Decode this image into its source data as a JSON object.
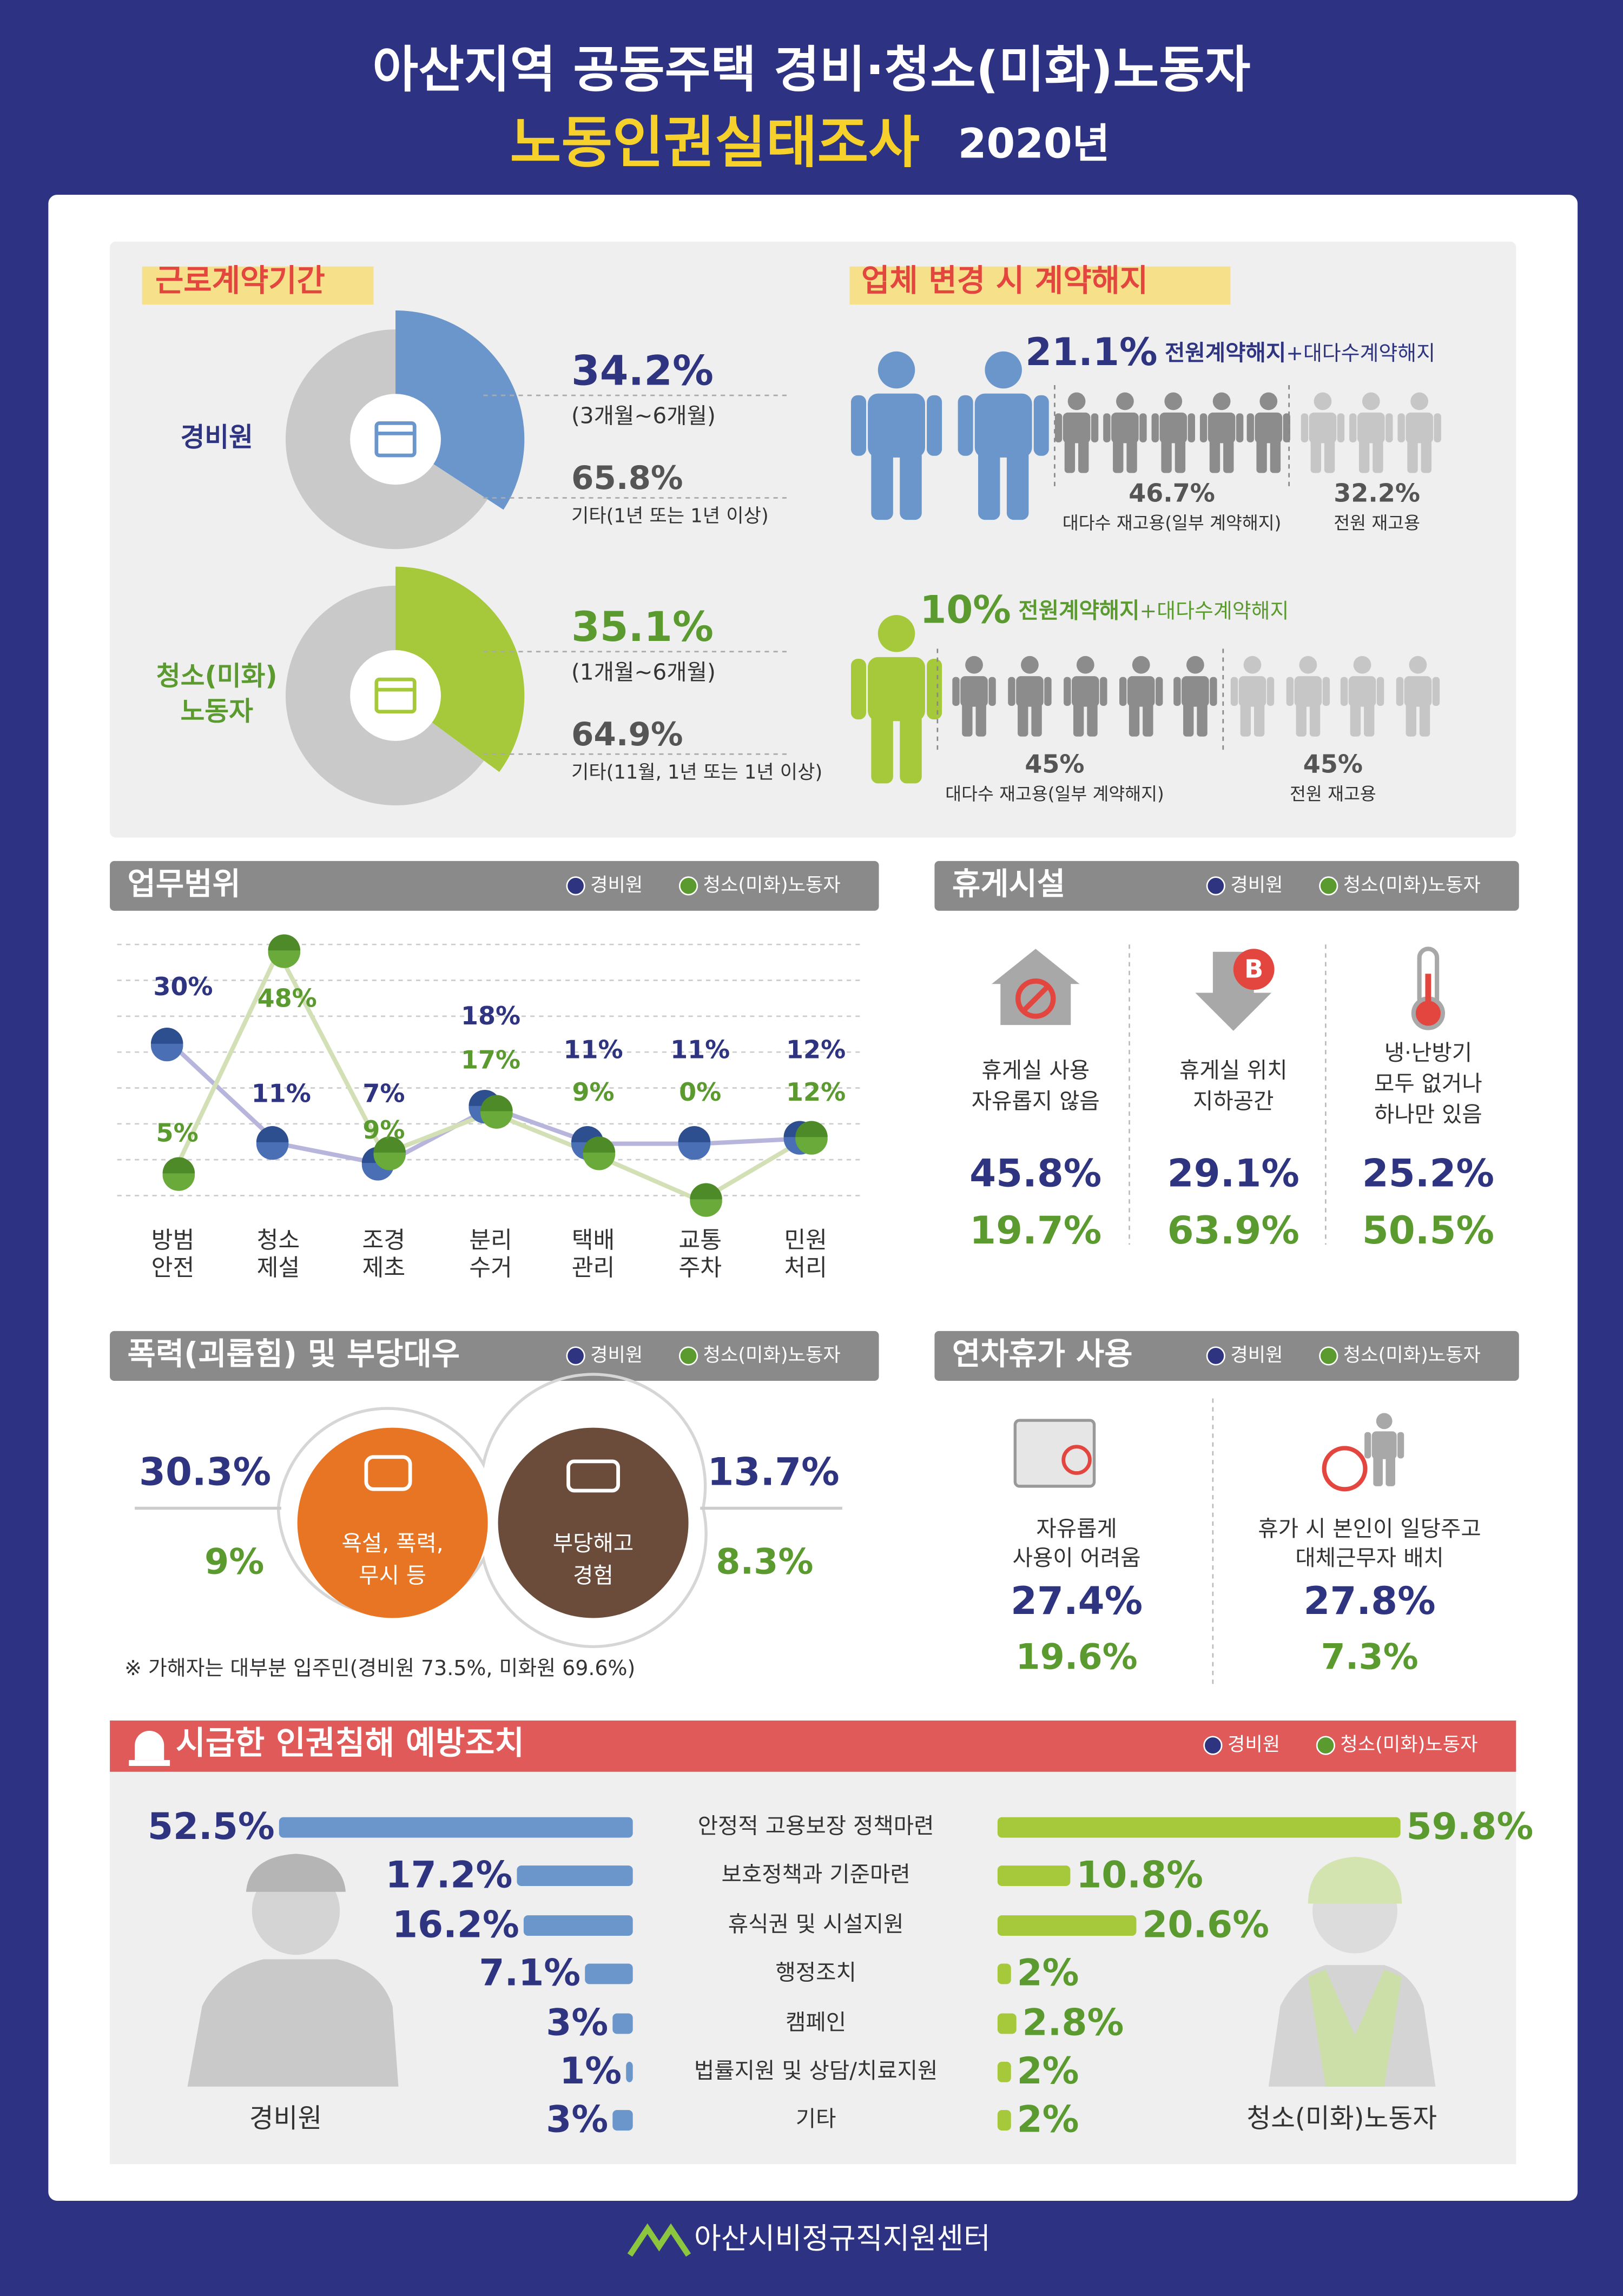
{
  "header": {
    "title_line1": "아산지역 공동주택 경비·청소(미화)노동자",
    "title_line2": "노동인권실태조사",
    "year": "2020년"
  },
  "contract": {
    "title": "근로계약기간",
    "groups": [
      {
        "label_lines": [
          "경비원"
        ],
        "color": "#6b96cc",
        "main": {
          "value": 34.2,
          "label": "34.2%"
        },
        "main_note": "(3개월~6개월)",
        "other": {
          "value": 65.8,
          "label": "65.8%"
        },
        "other_note": "기타(1년 또는 1년 이상)"
      },
      {
        "label_lines": [
          "청소(미화)",
          "노동자"
        ],
        "color": "#a5c93a",
        "main": {
          "value": 35.1,
          "label": "35.1%"
        },
        "main_note": "(1개월~6개월)",
        "other": {
          "value": 64.9,
          "label": "64.9%"
        },
        "other_note": "기타(11월, 1년 또는 1년 이상)"
      }
    ]
  },
  "termination": {
    "title": "업체 변경 시 계약해지",
    "groups": [
      {
        "value": "21.1%",
        "bold": "전원계약해지",
        "rest": "+대다수계약해지",
        "parts": [
          {
            "value": "46.7%",
            "note": "대다수 재고용(일부 계약해지)"
          },
          {
            "value": "32.2%",
            "note": "전원 재고용"
          }
        ]
      },
      {
        "value": "10%",
        "bold": "전원계약해지",
        "rest": "+대다수계약해지",
        "parts": [
          {
            "value": "45%",
            "note": "대다수 재고용(일부 계약해지)"
          },
          {
            "value": "45%",
            "note": "전원 재고용"
          }
        ]
      }
    ]
  },
  "work_scope": {
    "type": "line",
    "title": "업무범위",
    "categories": [
      [
        "방범",
        "안전"
      ],
      [
        "청소",
        "제설"
      ],
      [
        "조경",
        "제초"
      ],
      [
        "분리",
        "수거"
      ],
      [
        "택배",
        "관리"
      ],
      [
        "교통",
        "주차"
      ],
      [
        "민원",
        "처리"
      ]
    ],
    "ylim": [
      0,
      50
    ],
    "series": [
      {
        "name": "경비원",
        "color": "#4a6fb4",
        "values": [
          30,
          11,
          7,
          18,
          11,
          11,
          12
        ],
        "value_labels": [
          "30%",
          "11%",
          "7%",
          "18%",
          "11%",
          "11%",
          "12%"
        ]
      },
      {
        "name": "청소(미화)노동자",
        "color": "#6aaa3a",
        "values": [
          5,
          48,
          9,
          17,
          9,
          0,
          12
        ],
        "value_labels": [
          "5%",
          "48%",
          "9%",
          "17%",
          "9%",
          "0%",
          "12%"
        ]
      }
    ]
  },
  "rest": {
    "title": "휴게시설",
    "badge": "B",
    "items": [
      {
        "desc": [
          "휴게실 사용",
          "자유롭지 않음"
        ],
        "values": [
          "45.8%",
          "19.7%"
        ]
      },
      {
        "desc": [
          "휴게실 위치",
          "지하공간"
        ],
        "values": [
          "29.1%",
          "63.9%"
        ]
      },
      {
        "desc": [
          "냉·난방기",
          "모두 없거나",
          "하나만 있음"
        ],
        "values": [
          "25.2%",
          "50.5%"
        ]
      }
    ]
  },
  "violence": {
    "title": "폭력(괴롭힘) 및 부당대우",
    "items": [
      {
        "desc": [
          "욕설, 폭력,",
          "무시 등"
        ],
        "values": [
          "30.3%",
          "9%"
        ]
      },
      {
        "desc": [
          "부당해고",
          "경험"
        ],
        "values": [
          "13.7%",
          "8.3%"
        ]
      }
    ],
    "note": "※ 가해자는 대부분 입주민(경비원 73.5%, 미화원 69.6%)"
  },
  "leave": {
    "title": "연차휴가 사용",
    "items": [
      {
        "desc": [
          "자유롭게",
          "사용이 어려움"
        ],
        "values": [
          "27.4%",
          "19.6%"
        ]
      },
      {
        "desc": [
          "휴가 시 본인이 일당주고",
          "대체근무자 배치"
        ],
        "values": [
          "27.8%",
          "7.3%"
        ]
      }
    ]
  },
  "prevention": {
    "type": "bar",
    "title": "시급한 인권침해 예방조치",
    "categories": [
      "안정적 고용보장 정책마련",
      "보호정책과 기준마련",
      "휴식권 및 시설지원",
      "행정조치",
      "캠페인",
      "법률지원 및 상담/치료지원",
      "기타"
    ],
    "series": [
      {
        "name": "경비원",
        "color": "#6b96cc",
        "values": [
          52.5,
          17.2,
          16.2,
          7.1,
          3,
          1,
          3
        ],
        "value_labels": [
          "52.5%",
          "17.2%",
          "16.2%",
          "7.1%",
          "3%",
          "1%",
          "3%"
        ]
      },
      {
        "name": "청소(미화)노동자",
        "color": "#a5c93a",
        "values": [
          59.8,
          10.8,
          20.6,
          2,
          2.8,
          2,
          2
        ],
        "value_labels": [
          "59.8%",
          "10.8%",
          "20.6%",
          "2%",
          "2.8%",
          "2%",
          "2%"
        ]
      }
    ]
  },
  "footer": "아산시비정규직지원센터"
}
